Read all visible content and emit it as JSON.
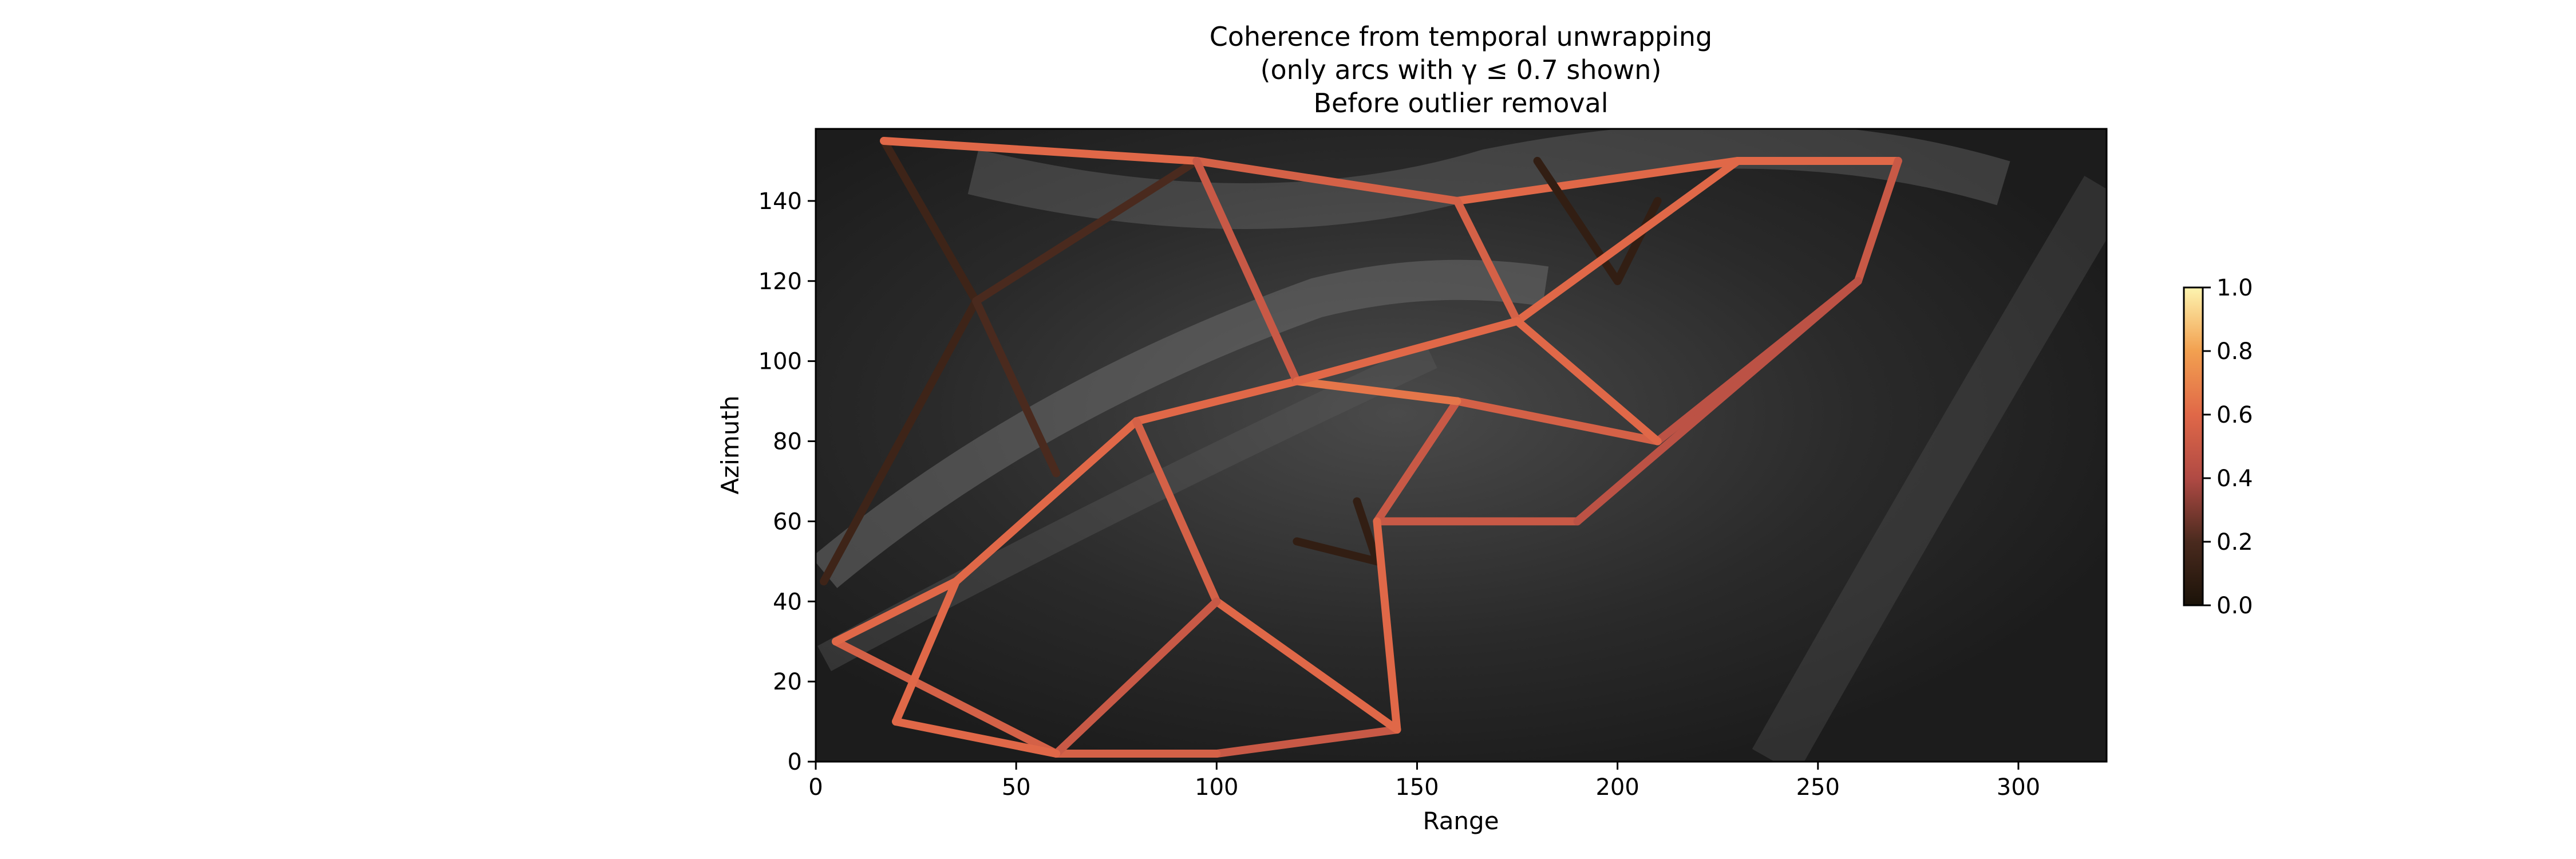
{
  "chart_data": {
    "type": "scatter",
    "title": [
      "Coherence from temporal unwrapping",
      "(only arcs with γ ≤  0.7 shown)",
      "Before outlier removal"
    ],
    "xlabel": "Range",
    "ylabel": "Azimuth",
    "xlim": [
      0,
      322
    ],
    "ylim": [
      0,
      158
    ],
    "xticks": [
      0,
      50,
      100,
      150,
      200,
      250,
      300
    ],
    "yticks": [
      0,
      20,
      40,
      60,
      80,
      100,
      120,
      140
    ],
    "colorbar": {
      "range": [
        0,
        1
      ],
      "ticks": [
        "0.0",
        "0.2",
        "0.4",
        "0.6",
        "0.8",
        "1.0"
      ],
      "colormap": "copper-orange-yellow"
    },
    "background": "grayscale amplitude image",
    "arcs": [
      {
        "from": [
          17,
          155
        ],
        "to": [
          40,
          115
        ],
        "coherence": 0.15
      },
      {
        "from": [
          40,
          115
        ],
        "to": [
          2,
          45
        ],
        "coherence": 0.15
      },
      {
        "from": [
          40,
          115
        ],
        "to": [
          95,
          150
        ],
        "coherence": 0.2
      },
      {
        "from": [
          40,
          115
        ],
        "to": [
          60,
          72
        ],
        "coherence": 0.2
      },
      {
        "from": [
          17,
          155
        ],
        "to": [
          95,
          150
        ],
        "coherence": 0.6
      },
      {
        "from": [
          95,
          150
        ],
        "to": [
          160,
          140
        ],
        "coherence": 0.55
      },
      {
        "from": [
          160,
          140
        ],
        "to": [
          230,
          150
        ],
        "coherence": 0.6
      },
      {
        "from": [
          230,
          150
        ],
        "to": [
          270,
          150
        ],
        "coherence": 0.6
      },
      {
        "from": [
          180,
          150
        ],
        "to": [
          200,
          120
        ],
        "coherence": 0.1
      },
      {
        "from": [
          200,
          120
        ],
        "to": [
          210,
          140
        ],
        "coherence": 0.1
      },
      {
        "from": [
          270,
          150
        ],
        "to": [
          260,
          120
        ],
        "coherence": 0.5
      },
      {
        "from": [
          260,
          120
        ],
        "to": [
          210,
          80
        ],
        "coherence": 0.45
      },
      {
        "from": [
          210,
          80
        ],
        "to": [
          160,
          90
        ],
        "coherence": 0.55
      },
      {
        "from": [
          160,
          90
        ],
        "to": [
          140,
          60
        ],
        "coherence": 0.5
      },
      {
        "from": [
          120,
          55
        ],
        "to": [
          140,
          50
        ],
        "coherence": 0.1
      },
      {
        "from": [
          140,
          50
        ],
        "to": [
          135,
          65
        ],
        "coherence": 0.1
      },
      {
        "from": [
          140,
          60
        ],
        "to": [
          190,
          60
        ],
        "coherence": 0.5
      },
      {
        "from": [
          190,
          60
        ],
        "to": [
          260,
          120
        ],
        "coherence": 0.45
      },
      {
        "from": [
          140,
          60
        ],
        "to": [
          145,
          8
        ],
        "coherence": 0.6
      },
      {
        "from": [
          145,
          8
        ],
        "to": [
          100,
          2
        ],
        "coherence": 0.5
      },
      {
        "from": [
          100,
          2
        ],
        "to": [
          60,
          2
        ],
        "coherence": 0.55
      },
      {
        "from": [
          60,
          2
        ],
        "to": [
          5,
          30
        ],
        "coherence": 0.55
      },
      {
        "from": [
          5,
          30
        ],
        "to": [
          35,
          45
        ],
        "coherence": 0.6
      },
      {
        "from": [
          35,
          45
        ],
        "to": [
          80,
          85
        ],
        "coherence": 0.6
      },
      {
        "from": [
          80,
          85
        ],
        "to": [
          120,
          95
        ],
        "coherence": 0.6
      },
      {
        "from": [
          120,
          95
        ],
        "to": [
          160,
          90
        ],
        "coherence": 0.65
      },
      {
        "from": [
          120,
          95
        ],
        "to": [
          95,
          150
        ],
        "coherence": 0.5
      },
      {
        "from": [
          80,
          85
        ],
        "to": [
          100,
          40
        ],
        "coherence": 0.55
      },
      {
        "from": [
          100,
          40
        ],
        "to": [
          145,
          8
        ],
        "coherence": 0.6
      },
      {
        "from": [
          100,
          40
        ],
        "to": [
          60,
          2
        ],
        "coherence": 0.5
      },
      {
        "from": [
          35,
          45
        ],
        "to": [
          20,
          10
        ],
        "coherence": 0.6
      },
      {
        "from": [
          20,
          10
        ],
        "to": [
          60,
          2
        ],
        "coherence": 0.6
      },
      {
        "from": [
          175,
          110
        ],
        "to": [
          210,
          80
        ],
        "coherence": 0.6
      },
      {
        "from": [
          175,
          110
        ],
        "to": [
          230,
          150
        ],
        "coherence": 0.6
      },
      {
        "from": [
          175,
          110
        ],
        "to": [
          160,
          140
        ],
        "coherence": 0.55
      },
      {
        "from": [
          175,
          110
        ],
        "to": [
          120,
          95
        ],
        "coherence": 0.6
      }
    ]
  }
}
